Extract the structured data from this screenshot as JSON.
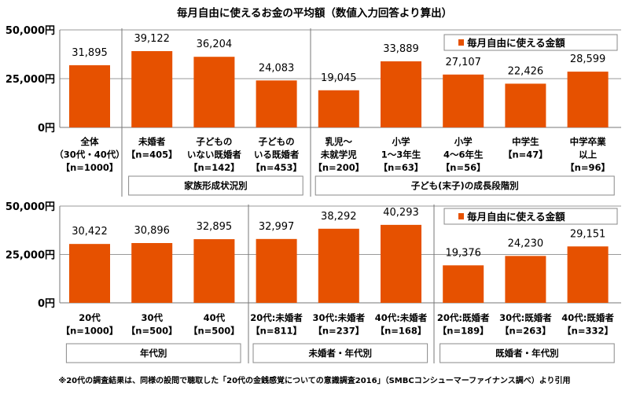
{
  "title": "毎月自由に使えるお金の平均額（数値入力回答より算出）",
  "footnote": "※20代の調査結果は、同様の設問で聴取した「20代の金銭感覚についての意識調査2016」（SMBCコンシューマーファイナンス調べ）より引用",
  "colors": {
    "bar": "#E65100",
    "grid": "#999999"
  },
  "chart_data": [
    {
      "type": "bar",
      "title": "毎月自由に使えるお金の平均額（数値入力回答より算出）",
      "ylim": [
        0,
        50000
      ],
      "yticks": [
        "0円",
        "25,000円",
        "50,000円"
      ],
      "ytick_values": [
        0,
        25000,
        50000
      ],
      "grid": true,
      "legend": {
        "position": "top-right",
        "label": "毎月自由に使える金額"
      },
      "categories": [
        [
          "全体",
          "（30代・40代）",
          "【n=1000】"
        ],
        [
          "未婚者",
          "【n=405】"
        ],
        [
          "子どもの",
          "いない既婚者",
          "【n=142】"
        ],
        [
          "子どもの",
          "いる既婚者",
          "【n=453】"
        ],
        [
          "乳児～",
          "未就学児",
          "【n=200】"
        ],
        [
          "小学",
          "1～3年生",
          "【n=63】"
        ],
        [
          "小学",
          "4～6年生",
          "【n=56】"
        ],
        [
          "中学生",
          "【n=47】"
        ],
        [
          "中学卒業",
          "以上",
          "【n=96】"
        ]
      ],
      "series": [
        {
          "name": "毎月自由に使える金額",
          "values": [
            31895,
            39122,
            36204,
            24083,
            19045,
            33889,
            27107,
            22426,
            28599
          ]
        }
      ],
      "data_labels": [
        "31,895",
        "39,122",
        "36,204",
        "24,083",
        "19,045",
        "33,889",
        "27,107",
        "22,426",
        "28,599"
      ],
      "groups": [
        {
          "label": "家族形成状況別",
          "from": 1,
          "to": 3
        },
        {
          "label": "子ども(末子)の成長段階別",
          "from": 4,
          "to": 8
        }
      ]
    },
    {
      "type": "bar",
      "ylim": [
        0,
        50000
      ],
      "yticks": [
        "0円",
        "25,000円",
        "50,000円"
      ],
      "ytick_values": [
        0,
        25000,
        50000
      ],
      "grid": true,
      "legend": {
        "position": "top-right",
        "label": "毎月自由に使える金額"
      },
      "categories": [
        [
          "20代",
          "【n=1000】"
        ],
        [
          "30代",
          "【n=500】"
        ],
        [
          "40代",
          "【n=500】"
        ],
        [
          "20代:未婚者",
          "【n=811】"
        ],
        [
          "30代:未婚者",
          "【n=237】"
        ],
        [
          "40代:未婚者",
          "【n=168】"
        ],
        [
          "20代:既婚者",
          "【n=189】"
        ],
        [
          "30代:既婚者",
          "【n=263】"
        ],
        [
          "40代:既婚者",
          "【n=332】"
        ]
      ],
      "series": [
        {
          "name": "毎月自由に使える金額",
          "values": [
            30422,
            30896,
            32895,
            32997,
            38292,
            40293,
            19376,
            24230,
            29151
          ]
        }
      ],
      "data_labels": [
        "30,422",
        "30,896",
        "32,895",
        "32,997",
        "38,292",
        "40,293",
        "19,376",
        "24,230",
        "29,151"
      ],
      "groups": [
        {
          "label": "年代別",
          "from": 0,
          "to": 2
        },
        {
          "label": "未婚者・年代別",
          "from": 3,
          "to": 5
        },
        {
          "label": "既婚者・年代別",
          "from": 6,
          "to": 8
        }
      ]
    }
  ]
}
